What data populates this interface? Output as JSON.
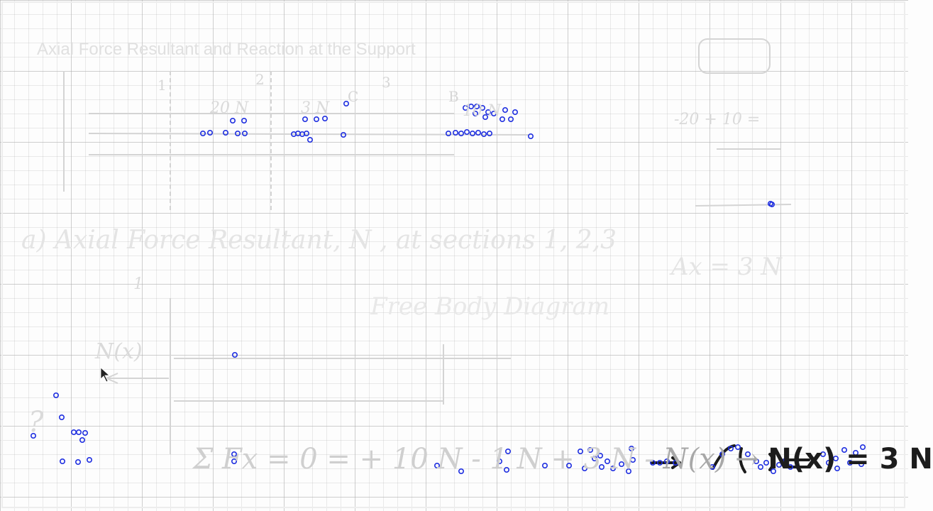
{
  "whiteboard": {
    "title": "Axial Force Resultant and Reaction at the Support",
    "segment_labels": [
      "1",
      "2",
      "3"
    ],
    "point_labels": [
      "B",
      "C"
    ],
    "beam_loads": [
      "20 N",
      "3 N",
      "10 N"
    ],
    "section_heading": "a) Axial Force Resultant, N , at sections 1, 2,3",
    "fbd_title": "Free Body Diagram",
    "fbd_label": "N(x)",
    "fbd_section": "1",
    "reaction_result": "Ax = 3 N",
    "side_formula": "-20 + 10 =",
    "equation_faint": "Σ Fx = 0 = + 10 N - 1 N + 3 N -",
    "equation_mid": "N(x) →",
    "equation_result": "N(x) = 3 N",
    "question_note": "?"
  },
  "colors": {
    "annotation_marker": "#1f2fe0",
    "ink_dark": "#1c1c1c",
    "ink_faint": "#d0d0d0"
  }
}
